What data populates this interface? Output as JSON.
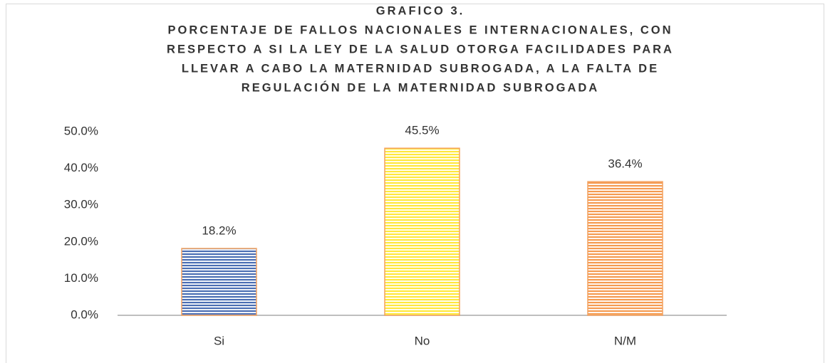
{
  "chart_data": {
    "type": "bar",
    "title": [
      "GRAFICO 3.",
      "PORCENTAJE DE FALLOS NACIONALES E INTERNACIONALES, CON",
      "RESPECTO A SI LA LEY DE LA SALUD OTORGA FACILIDADES PARA",
      "LLEVAR A CABO LA MATERNIDAD SUBROGADA, A LA FALTA DE",
      "REGULACIÓN DE LA MATERNIDAD SUBROGADA"
    ],
    "categories": [
      "Si",
      "No",
      "N/M"
    ],
    "values": [
      18.2,
      45.5,
      36.4
    ],
    "value_labels": [
      "18.2%",
      "45.5%",
      "36.4%"
    ],
    "colors": [
      "#4a6db3",
      "#ffe83c",
      "#f59a4f"
    ],
    "edgecolor": "#f3a261",
    "ylim": [
      0,
      50
    ],
    "yticks": [
      {
        "value": 0,
        "label": "0.0%"
      },
      {
        "value": 10,
        "label": "10.0%"
      },
      {
        "value": 20,
        "label": "20.0%"
      },
      {
        "value": 30,
        "label": "30.0%"
      },
      {
        "value": 40,
        "label": "40.0%"
      },
      {
        "value": 50,
        "label": "50.0%"
      }
    ],
    "grid": false
  }
}
